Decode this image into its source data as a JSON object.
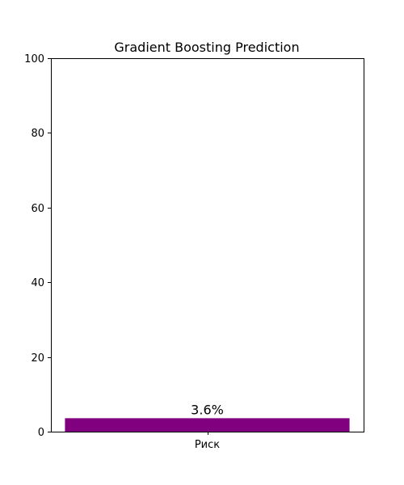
{
  "chart_data": {
    "type": "bar",
    "title": "Gradient Boosting Prediction",
    "categories": [
      "Риск"
    ],
    "values": [
      3.6
    ],
    "data_labels": [
      "3.6%"
    ],
    "xlabel": "",
    "ylabel": "",
    "ylim": [
      0,
      100
    ],
    "yticks": [
      0,
      20,
      40,
      60,
      80,
      100
    ],
    "grid": false,
    "legend": "none",
    "bar_color": "#800080"
  }
}
